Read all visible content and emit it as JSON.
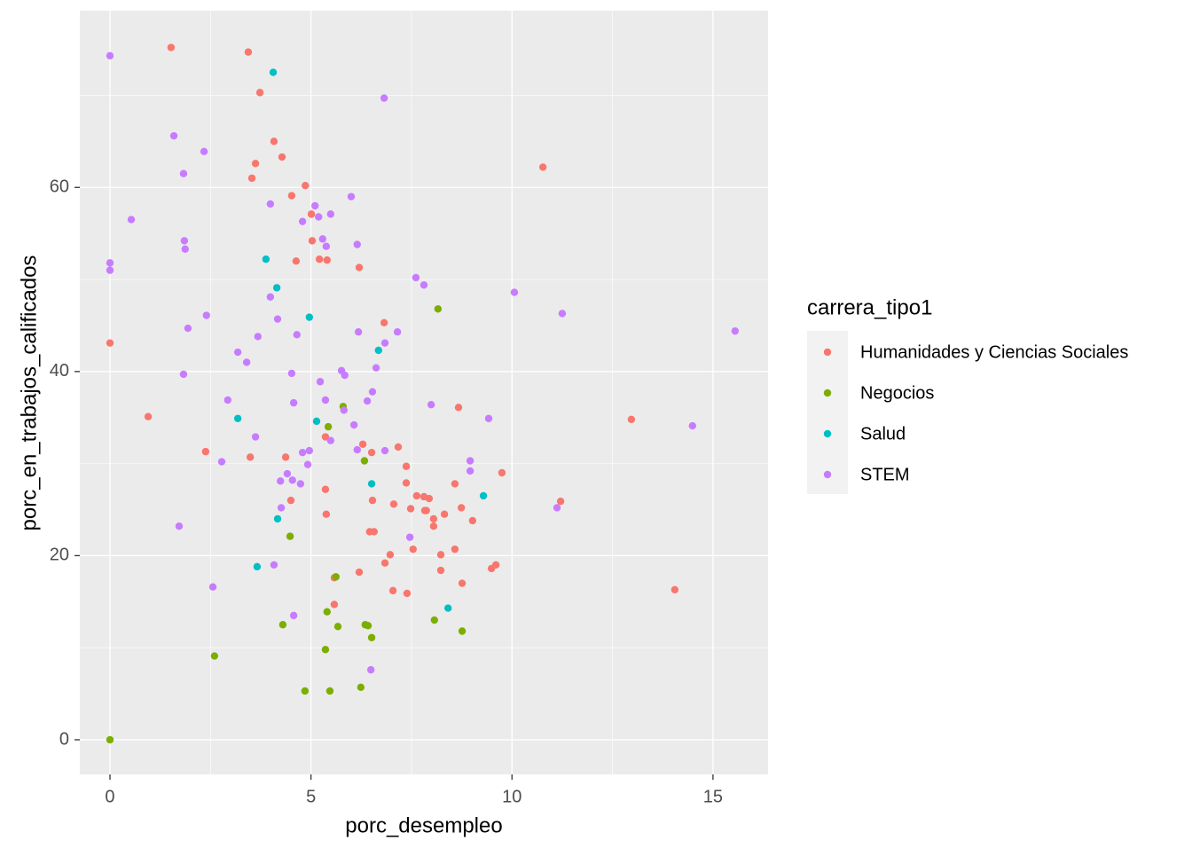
{
  "chart_data": {
    "type": "scatter",
    "x_label": "porc_desempleo",
    "y_label": "porc_en_trabajos_calificados",
    "legend_title": "carrera_tipo1",
    "xlim": [
      -0.75,
      16.37
    ],
    "ylim": [
      -3.76,
      79.2
    ],
    "xticks": [
      0,
      5,
      10,
      15
    ],
    "yticks": [
      0,
      20,
      40,
      60
    ],
    "xminor": [
      2.5,
      7.5,
      12.5
    ],
    "yminor": [
      10,
      30,
      50,
      70
    ],
    "grid": true,
    "legend": "right",
    "series": [
      {
        "name": "Humanidades y Ciencias Sociales",
        "color": "#F8766D",
        "x": [
          1.52,
          3.44,
          3.73,
          4.08,
          3.62,
          4.28,
          3.53,
          4.86,
          4.52,
          5.01,
          5.03,
          5.21,
          5.4,
          4.63,
          6.2,
          10.77,
          0,
          6.82,
          0.95,
          2.38,
          3.49,
          4.37,
          5.36,
          6.29,
          6.51,
          7.17,
          8.67,
          12.97,
          9.75,
          7.37,
          7.37,
          8.58,
          5.36,
          7.63,
          7.81,
          7.94,
          4.5,
          6.53,
          7.06,
          7.48,
          8.74,
          11.21,
          7.83,
          7.87,
          8.32,
          5.38,
          8.05,
          8.05,
          9.02,
          7.54,
          8.23,
          8.58,
          6.97,
          6.46,
          6.57,
          6.84,
          6.2,
          8.23,
          9.49,
          9.6,
          5.58,
          8.76,
          7.04,
          7.39,
          14.05,
          5.58
        ],
        "y": [
          75.2,
          74.7,
          70.3,
          65.0,
          62.6,
          63.3,
          61.0,
          60.2,
          59.1,
          57.1,
          54.2,
          52.2,
          52.1,
          52.0,
          51.3,
          62.2,
          43.1,
          45.3,
          35.1,
          31.3,
          30.7,
          30.7,
          32.9,
          32.1,
          31.2,
          31.8,
          36.1,
          34.8,
          29.0,
          29.7,
          27.9,
          27.8,
          27.2,
          26.5,
          26.4,
          26.2,
          26.0,
          26.0,
          25.6,
          25.1,
          25.2,
          25.9,
          24.9,
          24.9,
          24.5,
          24.5,
          24.0,
          23.2,
          23.8,
          20.7,
          20.1,
          20.7,
          20.1,
          22.6,
          22.6,
          19.2,
          18.2,
          18.4,
          18.6,
          19.0,
          17.6,
          17.0,
          16.2,
          15.9,
          16.3,
          14.7
        ]
      },
      {
        "name": "Negocios",
        "color": "#7CAE00",
        "x": [
          0,
          8.16,
          5.8,
          5.43,
          6.33,
          4.48,
          5.62,
          5.4,
          4.3,
          5.67,
          6.35,
          6.42,
          6.51,
          8.07,
          8.76,
          2.6,
          5.36,
          4.85,
          5.47,
          6.24
        ],
        "y": [
          0,
          46.8,
          36.2,
          34.0,
          30.3,
          22.1,
          17.7,
          13.9,
          12.5,
          12.3,
          12.5,
          12.4,
          11.1,
          13.0,
          11.8,
          9.1,
          9.8,
          5.3,
          5.3,
          5.7
        ]
      },
      {
        "name": "Salud",
        "color": "#00BFC4",
        "x": [
          4.06,
          3.88,
          4.15,
          4.96,
          6.68,
          3.18,
          5.14,
          6.51,
          9.29,
          4.17,
          3.66,
          8.41
        ],
        "y": [
          72.5,
          52.2,
          49.1,
          45.9,
          42.3,
          34.9,
          34.6,
          27.8,
          26.5,
          24.0,
          18.8,
          14.3
        ]
      },
      {
        "name": "STEM",
        "color": "#C77CFF",
        "x": [
          0,
          6.82,
          1.59,
          2.34,
          1.83,
          0.53,
          3.99,
          6.0,
          5.1,
          5.19,
          5.49,
          4.79,
          5.29,
          5.38,
          1.85,
          1.87,
          6.15,
          0,
          0,
          7.61,
          7.81,
          10.06,
          3.99,
          11.25,
          2.4,
          4.17,
          1.94,
          6.18,
          7.15,
          4.65,
          3.68,
          15.55,
          6.84,
          3.18,
          3.4,
          5.76,
          5.84,
          4.52,
          6.62,
          1.83,
          5.23,
          6.53,
          2.93,
          5.36,
          4.57,
          6.4,
          7.99,
          5.82,
          9.42,
          14.49,
          6.07,
          3.62,
          5.49,
          6.15,
          6.84,
          4.79,
          4.96,
          2.78,
          4.92,
          8.96,
          8.96,
          4.41,
          4.54,
          4.24,
          4.74,
          4.26,
          11.12,
          1.72,
          7.46,
          4.08,
          2.56,
          4.57,
          6.49
        ],
        "y": [
          74.3,
          69.7,
          65.6,
          63.9,
          61.5,
          56.5,
          58.2,
          59.0,
          58.0,
          56.8,
          57.1,
          56.3,
          54.4,
          53.6,
          54.2,
          53.3,
          53.8,
          51.8,
          51.0,
          50.2,
          49.4,
          48.6,
          48.1,
          46.3,
          46.1,
          45.7,
          44.7,
          44.3,
          44.3,
          44.0,
          43.8,
          44.4,
          43.1,
          42.1,
          41.0,
          40.1,
          39.6,
          39.8,
          40.4,
          39.7,
          38.9,
          37.8,
          36.9,
          36.9,
          36.6,
          36.8,
          36.4,
          35.8,
          34.9,
          34.1,
          34.2,
          32.9,
          32.5,
          31.5,
          31.4,
          31.2,
          31.4,
          30.2,
          29.9,
          30.3,
          29.2,
          28.9,
          28.2,
          28.1,
          27.8,
          25.2,
          25.2,
          23.2,
          22.0,
          19.0,
          16.6,
          13.5,
          7.6
        ]
      }
    ]
  }
}
